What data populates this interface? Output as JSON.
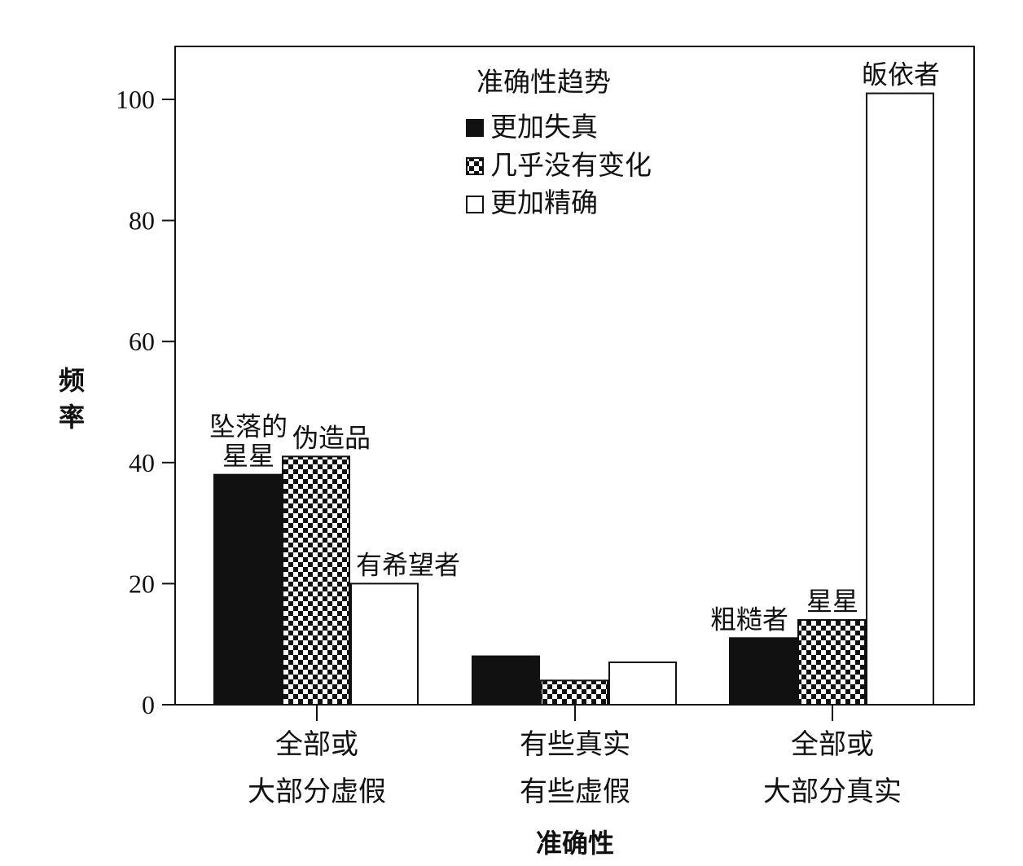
{
  "chart_data": {
    "type": "bar",
    "ylabel": "频率",
    "xlabel": "准确性",
    "ylim": [
      0,
      110
    ],
    "yticks": [
      0,
      20,
      40,
      60,
      80,
      100
    ],
    "grid": false,
    "legend": {
      "title": "准确性趋势",
      "placement": "top-center",
      "entries": [
        "更加失真",
        "几乎没有变化",
        "更加精确"
      ]
    },
    "categories": [
      [
        "全部或",
        "大部分虚假"
      ],
      [
        "有些真实",
        "有些虚假"
      ],
      [
        "全部或",
        "大部分真实"
      ]
    ],
    "series": [
      {
        "name": "更加失真",
        "pattern": "solid",
        "color": "#111111",
        "values": [
          38,
          8,
          11
        ]
      },
      {
        "name": "几乎没有变化",
        "pattern": "checker",
        "color": "#111111",
        "values": [
          41,
          4,
          14
        ]
      },
      {
        "name": "更加精确",
        "pattern": "empty",
        "color": "#ffffff",
        "values": [
          20,
          7,
          101
        ]
      }
    ],
    "bar_labels": [
      {
        "category": 0,
        "series": 0,
        "lines": [
          "坠落的",
          "星星"
        ]
      },
      {
        "category": 0,
        "series": 1,
        "lines": [
          "伪造品"
        ]
      },
      {
        "category": 0,
        "series": 2,
        "lines": [
          "有希望者"
        ]
      },
      {
        "category": 2,
        "series": 0,
        "lines": [
          "粗糙者"
        ]
      },
      {
        "category": 2,
        "series": 1,
        "lines": [
          "星星"
        ]
      },
      {
        "category": 2,
        "series": 2,
        "lines": [
          "皈依者"
        ]
      }
    ]
  }
}
